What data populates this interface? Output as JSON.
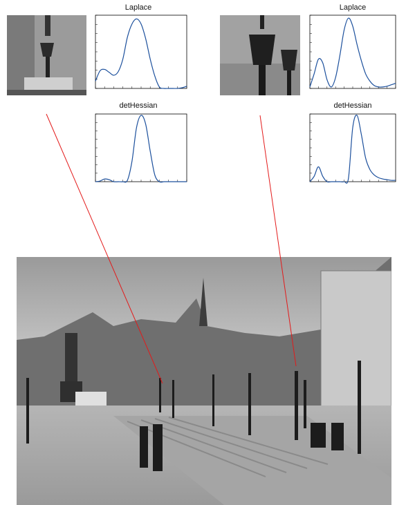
{
  "panels": [
    {
      "id": "left",
      "charts": [
        {
          "type": "line",
          "title": "Laplace",
          "xlim": [
            0,
            10
          ],
          "ylim": [
            0,
            1
          ],
          "x": [
            0.0,
            0.5,
            1.0,
            1.5,
            2.0,
            2.5,
            3.0,
            3.5,
            4.0,
            4.5,
            5.0,
            5.5,
            6.0,
            6.5,
            7.0,
            7.5,
            8.0,
            8.5,
            9.0,
            9.5,
            10.0
          ],
          "values": [
            0.1,
            0.24,
            0.26,
            0.22,
            0.18,
            0.23,
            0.4,
            0.7,
            0.88,
            0.95,
            0.88,
            0.68,
            0.4,
            0.17,
            0.02,
            0.0,
            0.0,
            0.0,
            0.0,
            0.01,
            0.03
          ]
        },
        {
          "type": "line",
          "title": "detHessian",
          "xlim": [
            0,
            10
          ],
          "ylim": [
            0,
            1
          ],
          "x": [
            0.0,
            0.5,
            1.0,
            1.5,
            2.0,
            2.5,
            3.0,
            3.5,
            4.0,
            4.5,
            5.0,
            5.5,
            6.0,
            6.5,
            7.0,
            7.5,
            8.0,
            8.5,
            9.0,
            9.5,
            10.0
          ],
          "values": [
            0.0,
            0.01,
            0.04,
            0.03,
            0.0,
            0.0,
            0.0,
            0.02,
            0.3,
            0.8,
            0.98,
            0.85,
            0.45,
            0.1,
            0.0,
            0.0,
            0.0,
            0.0,
            0.0,
            0.0,
            0.0
          ]
        }
      ]
    },
    {
      "id": "right",
      "charts": [
        {
          "type": "line",
          "title": "Laplace",
          "xlim": [
            0,
            10
          ],
          "ylim": [
            0,
            1
          ],
          "x": [
            0.0,
            0.5,
            1.0,
            1.5,
            2.0,
            2.5,
            3.0,
            3.5,
            4.0,
            4.5,
            5.0,
            5.5,
            6.0,
            6.5,
            7.0,
            7.5,
            8.0,
            8.5,
            9.0,
            9.5,
            10.0
          ],
          "values": [
            0.02,
            0.2,
            0.4,
            0.35,
            0.12,
            0.02,
            0.15,
            0.45,
            0.8,
            0.96,
            0.85,
            0.6,
            0.38,
            0.2,
            0.1,
            0.04,
            0.02,
            0.02,
            0.03,
            0.05,
            0.07
          ]
        },
        {
          "type": "line",
          "title": "detHessian",
          "xlim": [
            0,
            10
          ],
          "ylim": [
            0,
            1
          ],
          "x": [
            0.0,
            0.5,
            1.0,
            1.5,
            2.0,
            2.5,
            3.0,
            3.5,
            4.0,
            4.5,
            5.0,
            5.5,
            6.0,
            6.5,
            7.0,
            7.5,
            8.0,
            8.5,
            9.0,
            9.5,
            10.0
          ],
          "values": [
            0.0,
            0.08,
            0.22,
            0.08,
            0.0,
            0.0,
            0.0,
            0.0,
            0.0,
            0.05,
            0.8,
            0.98,
            0.7,
            0.35,
            0.18,
            0.1,
            0.06,
            0.04,
            0.03,
            0.02,
            0.02
          ]
        }
      ]
    }
  ],
  "colors": {
    "curve": "#1b4f9c",
    "connector": "#e31a1a",
    "axis": "#000000"
  }
}
